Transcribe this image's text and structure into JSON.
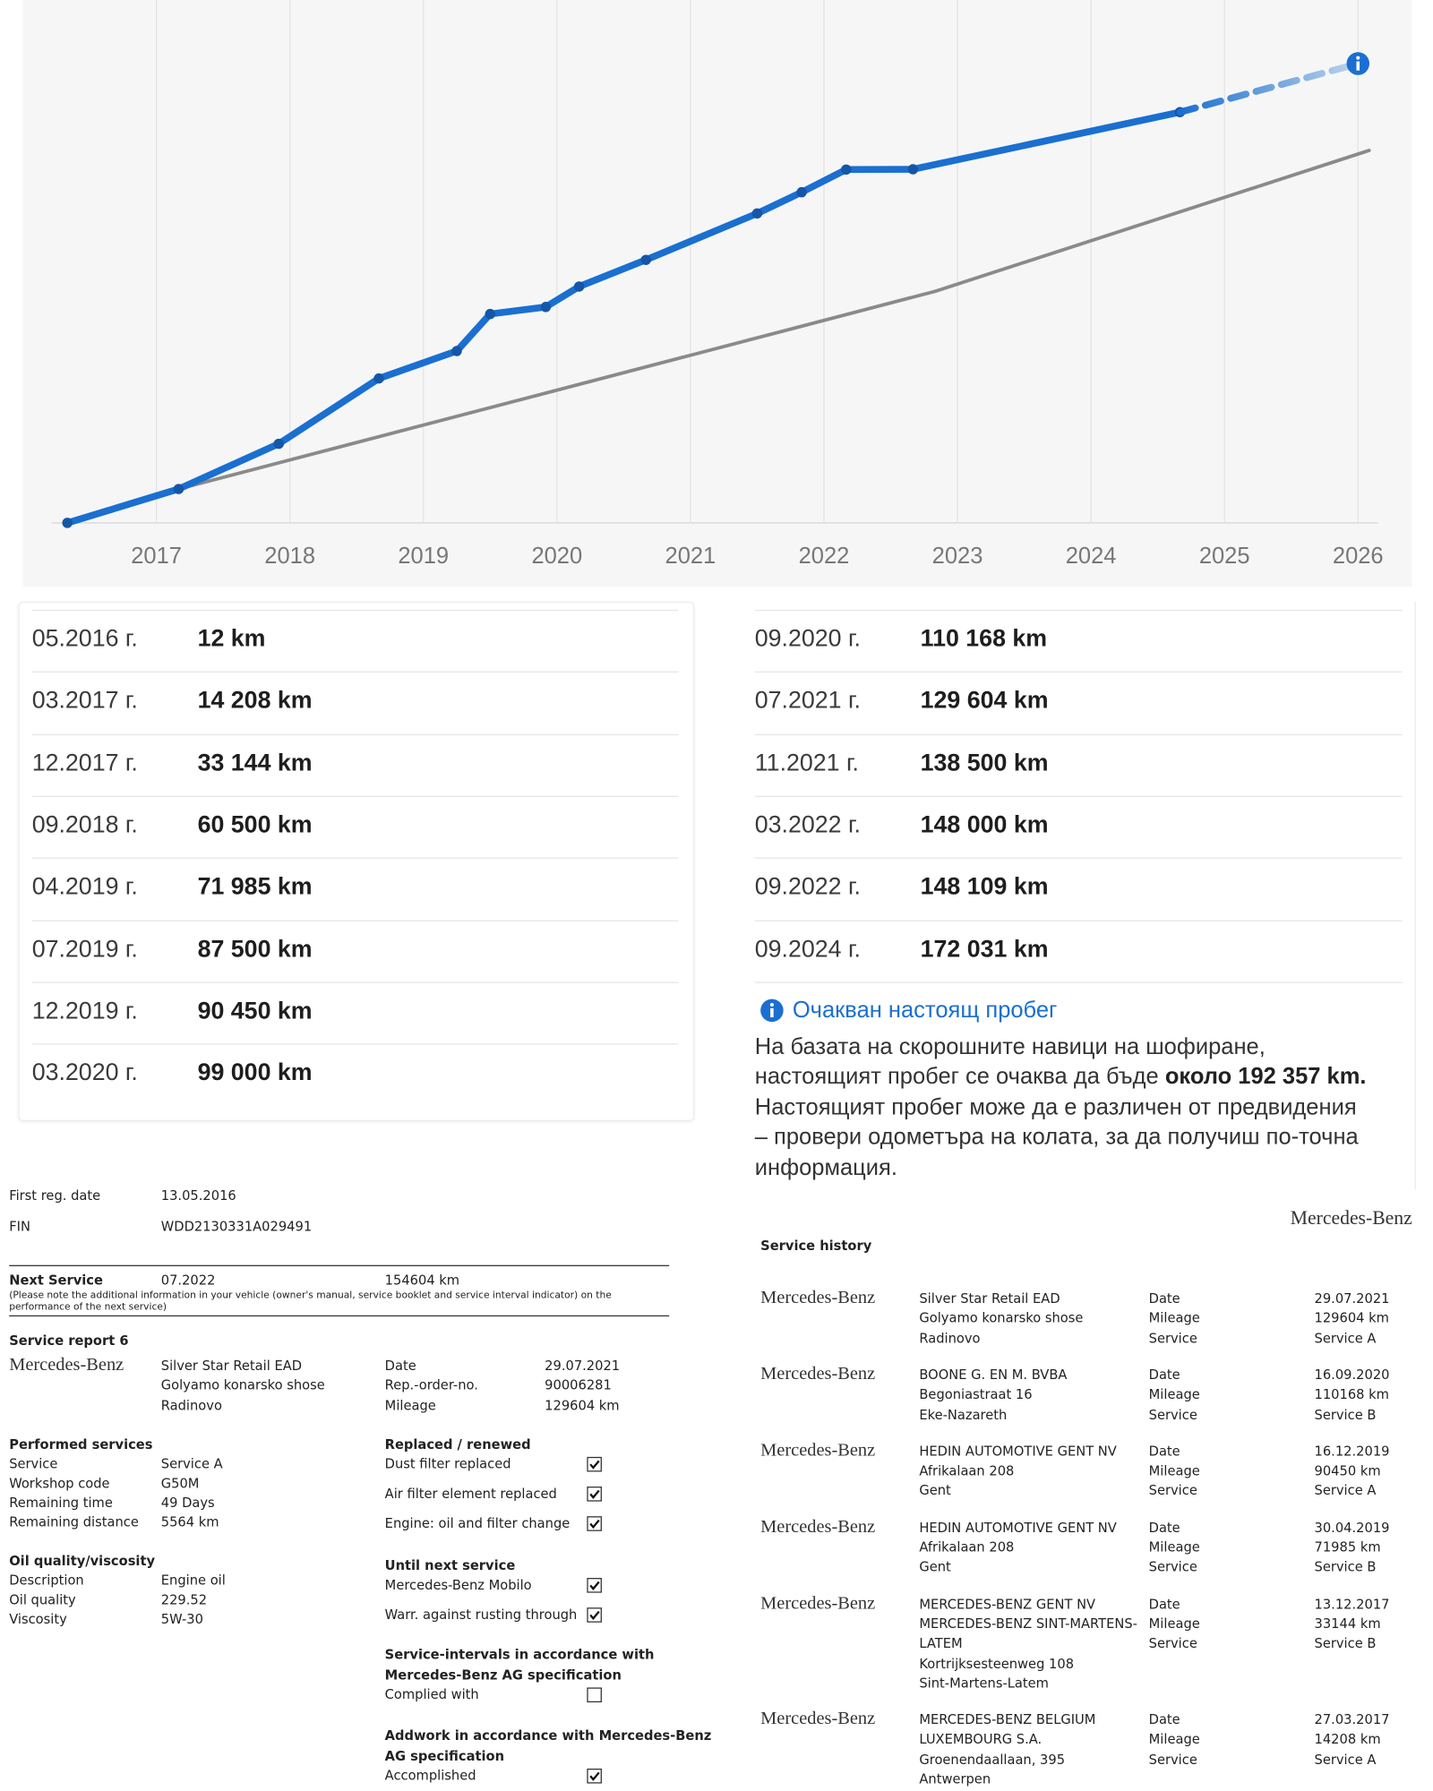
{
  "chart_data": {
    "type": "line",
    "xlim": [
      2016,
      2026.4
    ],
    "ylim": [
      0,
      219000
    ],
    "xticks": [
      2017,
      2018,
      2019,
      2020,
      2021,
      2022,
      2023,
      2024,
      2025,
      2026
    ],
    "grid": true,
    "series": [
      {
        "color": "#1a6fd0",
        "style": "solid",
        "markers": true,
        "x": [
          "2016-05",
          "2017-03",
          "2017-12",
          "2018-09",
          "2019-04",
          "2019-07",
          "2019-12",
          "2020-03",
          "2020-09",
          "2021-07",
          "2021-11",
          "2022-03",
          "2022-09",
          "2024-09"
        ],
        "values": [
          12,
          14208,
          33144,
          60500,
          71985,
          87500,
          90450,
          99000,
          110168,
          129604,
          138500,
          148000,
          148109,
          172031
        ]
      },
      {
        "color": "#1a6fd0",
        "style": "dashed",
        "markers": false,
        "end_icon": true,
        "x": [
          "2024-09",
          "2026-01"
        ],
        "values": [
          172031,
          192357
        ]
      },
      {
        "color": "#8a8a8a",
        "style": "thin",
        "markers": false,
        "x": [
          "2017-03",
          "2022-11",
          "2026-02"
        ],
        "values": [
          14208,
          97000,
          156000
        ]
      }
    ]
  },
  "readings": {
    "left": [
      {
        "date": "05.2016 г.",
        "mileage": "12 km"
      },
      {
        "date": "03.2017 г.",
        "mileage": "14 208 km"
      },
      {
        "date": "12.2017 г.",
        "mileage": "33 144 km"
      },
      {
        "date": "09.2018 г.",
        "mileage": "60 500 km"
      },
      {
        "date": "04.2019 г.",
        "mileage": "71 985 km"
      },
      {
        "date": "07.2019 г.",
        "mileage": "87 500 km"
      },
      {
        "date": "12.2019 г.",
        "mileage": "90 450 km"
      },
      {
        "date": "03.2020 г.",
        "mileage": "99 000 km"
      }
    ],
    "right": [
      {
        "date": "09.2020 г.",
        "mileage": "110 168 km"
      },
      {
        "date": "07.2021 г.",
        "mileage": "129 604 km"
      },
      {
        "date": "11.2021 г.",
        "mileage": "138 500 km"
      },
      {
        "date": "03.2022 г.",
        "mileage": "148 000 km"
      },
      {
        "date": "09.2022 г.",
        "mileage": "148 109 km"
      },
      {
        "date": "09.2024 г.",
        "mileage": "172 031 km"
      }
    ]
  },
  "estimate": {
    "title": "Очакван настоящ пробег",
    "text_before": "На базата на скорошните навици на шофиране, настоящият пробег се очаква да бъде ",
    "text_bold": "около 192 357 km.",
    "text_after": " Настоящият пробег може да е различен от предвидения – провери одометъра на колата, за да получиш по-точна информация."
  },
  "doc": {
    "first_reg": {
      "label": "First reg. date",
      "value": "13.05.2016"
    },
    "fin": {
      "label": "FIN",
      "value": "WDD2130331A029491"
    },
    "next_service": {
      "label": "Next Service",
      "date": "07.2022",
      "mileage": "154604 km",
      "note": "(Please note the additional information in your vehicle (owner's manual, service booklet and service interval indicator) on the performance of the next service)"
    },
    "report": {
      "title": "Service report 6",
      "brand": "Mercedes-Benz",
      "dealer": [
        "Silver Star Retail EAD",
        "Golyamo konarsko shose",
        "Radinovo"
      ],
      "fields": [
        {
          "label": "Date",
          "value": "29.07.2021"
        },
        {
          "label": "Rep.-order-no.",
          "value": "90006281"
        },
        {
          "label": "Mileage",
          "value": "129604 km"
        }
      ]
    },
    "performed": {
      "title": "Performed services",
      "rows": [
        {
          "label": "Service",
          "value": "Service A"
        },
        {
          "label": "Workshop code",
          "value": "G50M"
        },
        {
          "label": "Remaining time",
          "value": "49 Days"
        },
        {
          "label": "Remaining distance",
          "value": "5564 km"
        }
      ]
    },
    "oil": {
      "title": "Oil quality/viscosity",
      "rows": [
        {
          "label": "Description",
          "value": "Engine oil"
        },
        {
          "label": "Oil quality",
          "value": "229.52"
        },
        {
          "label": "Viscosity",
          "value": "5W-30"
        }
      ]
    },
    "replaced": {
      "title": [
        "Replaced / renewed"
      ],
      "items": [
        {
          "label": "Dust filter replaced",
          "checked": true
        },
        {
          "label": "Air filter element replaced",
          "checked": true
        },
        {
          "label": "Engine: oil and filter change",
          "checked": true
        }
      ]
    },
    "until_next": {
      "title": [
        "Until next service"
      ],
      "items": [
        {
          "label": "Mercedes-Benz Mobilo",
          "checked": true
        },
        {
          "label": "Warr. against rusting through",
          "checked": true
        }
      ]
    },
    "intervals": {
      "title": [
        "Service-intervals in accordance with",
        "Mercedes-Benz AG specification"
      ],
      "items": [
        {
          "label": "Complied with",
          "checked": false
        }
      ]
    },
    "addwork": {
      "title": [
        "Addwork in accordance with Mercedes-Benz",
        "AG specification"
      ],
      "items": [
        {
          "label": "Accomplished",
          "checked": true
        }
      ]
    }
  },
  "history": {
    "brand": "Mercedes-Benz",
    "title": "Service history",
    "entries": [
      {
        "brand": "Mercedes-Benz",
        "address": [
          "Silver Star Retail EAD",
          "Golyamo konarsko shose",
          "Radinovo"
        ],
        "fields": [
          {
            "label": "Date",
            "value": "29.07.2021"
          },
          {
            "label": "Mileage",
            "value": "129604 km"
          },
          {
            "label": "Service",
            "value": "Service A"
          }
        ]
      },
      {
        "brand": "Mercedes-Benz",
        "address": [
          "BOONE G. EN M. BVBA",
          "Begoniastraat 16",
          "Eke-Nazareth"
        ],
        "fields": [
          {
            "label": "Date",
            "value": "16.09.2020"
          },
          {
            "label": "Mileage",
            "value": "110168 km"
          },
          {
            "label": "Service",
            "value": "Service B"
          }
        ]
      },
      {
        "brand": "Mercedes-Benz",
        "address": [
          "HEDIN AUTOMOTIVE GENT NV",
          "Afrikalaan 208",
          "Gent"
        ],
        "fields": [
          {
            "label": "Date",
            "value": "16.12.2019"
          },
          {
            "label": "Mileage",
            "value": "90450 km"
          },
          {
            "label": "Service",
            "value": "Service A"
          }
        ]
      },
      {
        "brand": "Mercedes-Benz",
        "address": [
          "HEDIN AUTOMOTIVE GENT NV",
          "Afrikalaan 208",
          "Gent"
        ],
        "fields": [
          {
            "label": "Date",
            "value": "30.04.2019"
          },
          {
            "label": "Mileage",
            "value": "71985 km"
          },
          {
            "label": "Service",
            "value": "Service B"
          }
        ]
      },
      {
        "brand": "Mercedes-Benz",
        "address": [
          "MERCEDES-BENZ GENT NV",
          "MERCEDES-BENZ SINT-MARTENS-",
          "LATEM",
          "Kortrijksesteenweg 108",
          "Sint-Martens-Latem"
        ],
        "fields": [
          {
            "label": "Date",
            "value": "13.12.2017"
          },
          {
            "label": "Mileage",
            "value": "33144 km"
          },
          {
            "label": "Service",
            "value": "Service B"
          }
        ]
      },
      {
        "brand": "Mercedes-Benz",
        "address": [
          "MERCEDES-BENZ BELGIUM",
          "LUXEMBOURG S.A.",
          "Groenendaallaan, 395",
          "Antwerpen"
        ],
        "fields": [
          {
            "label": "Date",
            "value": "27.03.2017"
          },
          {
            "label": "Mileage",
            "value": "14208 km"
          },
          {
            "label": "Service",
            "value": "Service A"
          }
        ]
      }
    ]
  }
}
